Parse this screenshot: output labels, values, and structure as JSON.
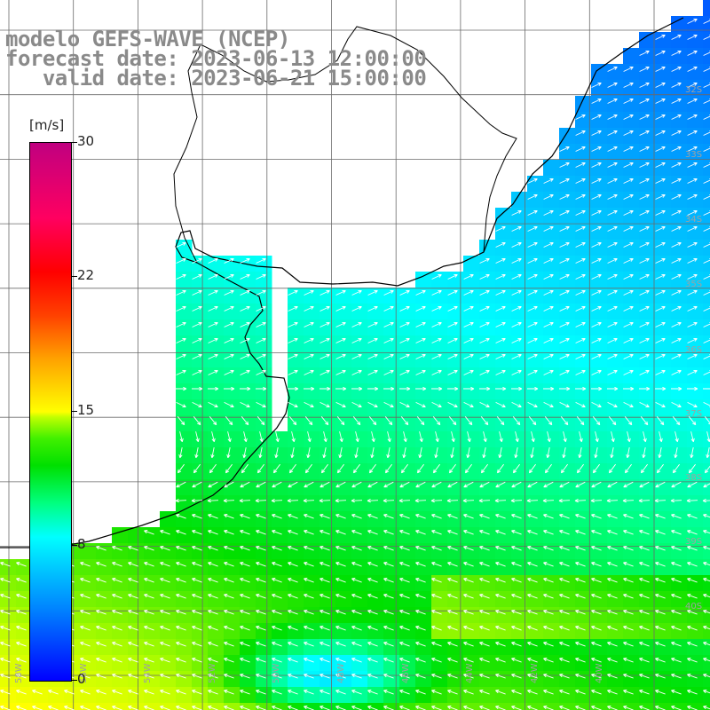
{
  "title": {
    "line1": "modelo GEFS-WAVE (NCEP)",
    "line2": "forecast date: 2023-06-13 12:00:00",
    "line3": "   valid date: 2023-06-21 15:00:00"
  },
  "colorbar": {
    "unit": "[m/s]",
    "ticks": [
      "30",
      "22",
      "15",
      "8",
      "0"
    ],
    "tick_values": [
      30,
      22,
      15,
      8,
      0
    ],
    "min": 0,
    "max": 30
  },
  "grid": {
    "lat_labels": [
      "32S",
      "33S",
      "34S",
      "35S",
      "36S",
      "37S",
      "38S",
      "39S",
      "40S"
    ],
    "lon_labels": [
      "58W",
      "56W",
      "54W",
      "52W",
      "50W",
      "48W",
      "46W",
      "44W",
      "42W",
      "40W"
    ]
  },
  "colors": {
    "land": "#ffffff",
    "coastline": "#000000",
    "gridline": "#6a6a6a",
    "arrow": "#ffffff",
    "title_text": "#8a8a8a"
  }
}
